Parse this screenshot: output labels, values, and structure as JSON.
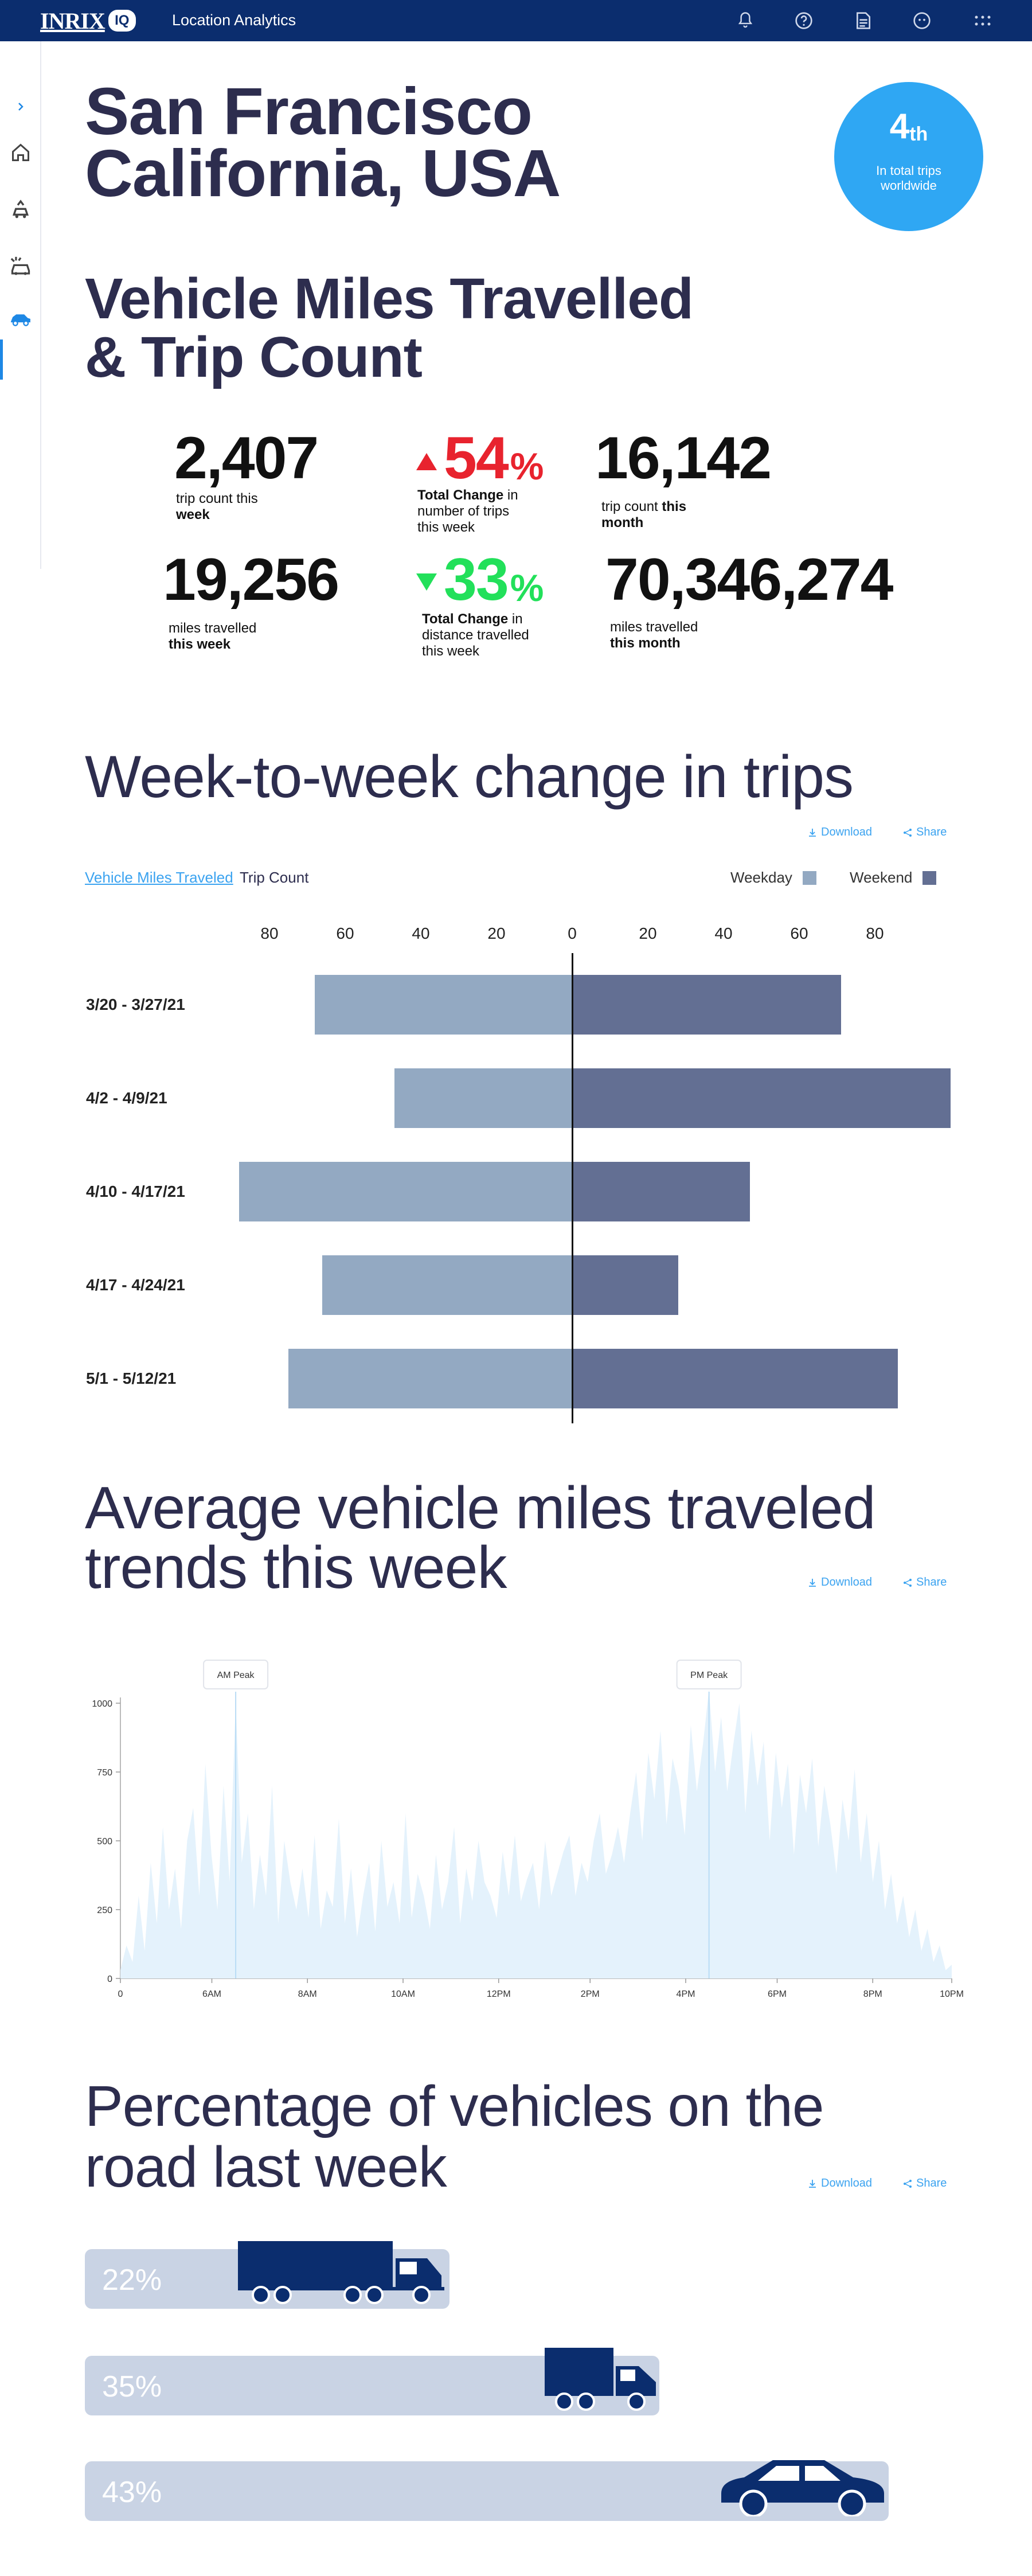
{
  "header": {
    "logo_text": "INRIX",
    "logo_badge": "IQ",
    "app_title": "Location Analytics",
    "icons": [
      "bell-icon",
      "help-icon",
      "document-icon",
      "account-icon",
      "apps-grid-icon"
    ]
  },
  "sidebar": {
    "items": [
      "expand-chevron-icon",
      "home-icon",
      "traffic-icon",
      "car-crash-icon",
      "car-icon"
    ],
    "active": "car-icon"
  },
  "location": {
    "city": "San Francisco",
    "region": "California, USA"
  },
  "rank": {
    "value": "4",
    "suffix": "th",
    "caption": "In total trips worldwide"
  },
  "vmt_section": {
    "title_line1": "Vehicle Miles Travelled",
    "title_line2": "& Trip Count",
    "stats": {
      "trip_week": {
        "value": "2,407",
        "label_line1": "trip count this",
        "label_line2": "week"
      },
      "trip_change": {
        "value": "54",
        "unit": "%",
        "label_bold": "Total Change",
        "label_rest1": " in",
        "label_line2": "number of trips",
        "label_line3": "this week",
        "direction": "up",
        "color": "#e8232e"
      },
      "trip_month": {
        "value": "16,142",
        "label_line1": "trip count ",
        "label_bold": "this",
        "label_line2": "month"
      },
      "miles_week": {
        "value": "19,256",
        "label_line1": "miles travelled",
        "label_line2": "this week"
      },
      "miles_change": {
        "value": "33",
        "unit": "%",
        "label_bold": "Total Change",
        "label_rest1": " in",
        "label_line2": "distance travelled",
        "label_line3": "this week",
        "direction": "down",
        "color": "#22e05a"
      },
      "miles_month": {
        "value": "70,346,274",
        "label_line1": "miles travelled",
        "label_line2": "this month"
      }
    }
  },
  "wtw_section": {
    "title": "Week-to-week change in trips",
    "download": "Download",
    "share": "Share",
    "tabs": [
      {
        "label": "Vehicle Miles Traveled",
        "active": true
      },
      {
        "label": "Trip Count",
        "active": false
      }
    ],
    "colors": {
      "weekday": "#93a9c2",
      "weekend": "#636f93"
    }
  },
  "chart_data": [
    {
      "type": "bar",
      "orientation": "horizontal-diverging",
      "categories": [
        "3/20 - 3/27/21",
        "4/2 - 4/9/21",
        "4/10 - 4/17/21",
        "4/17 - 4/24/21",
        "5/1 - 5/12/21"
      ],
      "series": [
        {
          "name": "Weekday",
          "values": [
            68,
            47,
            88,
            66,
            75
          ]
        },
        {
          "name": "Weekend",
          "values": [
            71,
            100,
            47,
            28,
            86
          ]
        }
      ],
      "x_ticks_left": [
        "80",
        "60",
        "40",
        "20"
      ],
      "x_tick_zero": "0",
      "x_ticks_right": [
        "20",
        "40",
        "60",
        "80"
      ],
      "legend_position": "top-right"
    },
    {
      "type": "area",
      "title_line1": "Average vehicle miles traveled",
      "title_line2": "trends this week",
      "download": "Download",
      "share": "Share",
      "x_ticks": [
        "0",
        "6AM",
        "8AM",
        "10AM",
        "12PM",
        "2PM",
        "4PM",
        "6PM",
        "8PM",
        "10PM"
      ],
      "y_ticks": [
        "0",
        "250",
        "500",
        "750",
        "1000"
      ],
      "ylim": [
        0,
        1000
      ],
      "annotations": [
        {
          "label": "AM Peak",
          "x_index": 19
        },
        {
          "label": "PM Peak",
          "x_index": 97
        }
      ],
      "values": [
        30,
        120,
        60,
        300,
        100,
        420,
        200,
        550,
        250,
        400,
        180,
        500,
        620,
        300,
        780,
        450,
        250,
        700,
        350,
        1000,
        420,
        600,
        250,
        450,
        300,
        700,
        200,
        500,
        350,
        250,
        400,
        220,
        520,
        180,
        320,
        260,
        580,
        200,
        400,
        150,
        300,
        420,
        170,
        500,
        260,
        350,
        200,
        600,
        220,
        380,
        300,
        180,
        450,
        250,
        350,
        550,
        200,
        400,
        280,
        500,
        350,
        300,
        220,
        460,
        300,
        520,
        280,
        360,
        420,
        250,
        500,
        300,
        380,
        460,
        520,
        300,
        420,
        350,
        500,
        600,
        380,
        450,
        550,
        420,
        600,
        750,
        500,
        820,
        650,
        900,
        560,
        800,
        700,
        520,
        920,
        680,
        850,
        1050,
        750,
        950,
        680,
        850,
        1000,
        600,
        900,
        700,
        860,
        500,
        820,
        620,
        780,
        450,
        740,
        600,
        800,
        480,
        700,
        560,
        380,
        650,
        500,
        760,
        420,
        600,
        350,
        500,
        250,
        380,
        200,
        300,
        150,
        250,
        100,
        180,
        60,
        120,
        30,
        50
      ]
    }
  ],
  "pct_section": {
    "title_line1": "Percentage of vehicles on the",
    "title_line2": "road last week",
    "download": "Download",
    "share": "Share",
    "bars": [
      {
        "label": "22%",
        "value": 22,
        "vehicle": "semi-truck-icon"
      },
      {
        "label": "35%",
        "value": 35,
        "vehicle": "box-truck-icon"
      },
      {
        "label": "43%",
        "value": 43,
        "vehicle": "car-icon"
      }
    ],
    "bar_color": "#c9d3e4",
    "vehicle_color": "#0b2d6e"
  }
}
